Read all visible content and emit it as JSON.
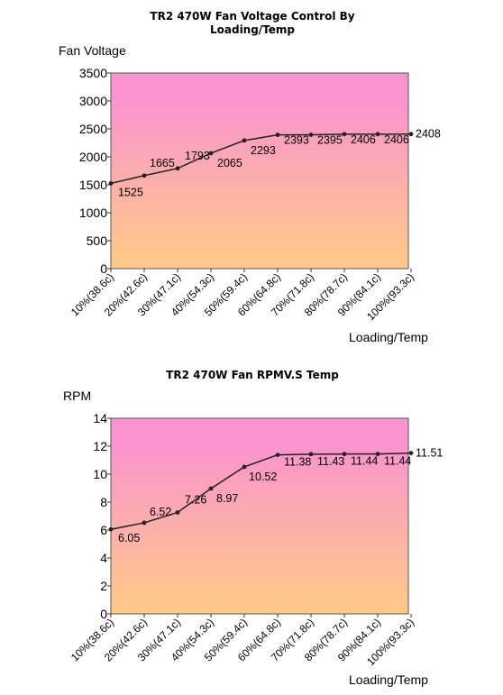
{
  "chart_data": [
    {
      "type": "line",
      "title": "TR2 470W Fan Voltage Control By Loading/Temp",
      "ylabel": "Fan Voltage",
      "xlabel": "Loading/Temp",
      "categories": [
        "10%(38.6c)",
        "20%(42.6c)",
        "30%(47.1c)",
        "40%(54.3c)",
        "50%(59.4c)",
        "60%(64.8c)",
        "70%(71.8c)",
        "80%(78.7c)",
        "90%(84.1c)",
        "100%(93.3c)"
      ],
      "values": [
        1525,
        1665,
        1793,
        2065,
        2293,
        2393,
        2395,
        2406,
        2406,
        2408
      ],
      "data_labels": [
        "1525",
        "1665",
        "1793",
        "2065",
        "2293",
        "2393",
        "2395",
        "2406",
        "2406",
        "2408"
      ],
      "ylim": [
        0,
        3500
      ],
      "yticks": [
        "0",
        "500",
        "1000",
        "1500",
        "2000",
        "2500",
        "3000",
        "3500"
      ],
      "grid": false,
      "background_gradient": [
        "#fb93d0",
        "#fec88a"
      ],
      "line_color": "#222222"
    },
    {
      "type": "line",
      "title": "TR2 470W Fan RPMV.S Temp",
      "ylabel": "RPM",
      "xlabel": "Loading/Temp",
      "categories": [
        "10%(38.6c)",
        "20%(42.6c)",
        "30%(47.1c)",
        "40%(54.3c)",
        "50%(59.4c)",
        "60%(64.8c)",
        "70%(71.8c)",
        "80%(78.7c)",
        "90%(84.1c)",
        "100%(93.3c)"
      ],
      "values": [
        6.05,
        6.52,
        7.26,
        8.97,
        10.52,
        11.38,
        11.43,
        11.44,
        11.44,
        11.51
      ],
      "data_labels": [
        "6.05",
        "6.52",
        "7.26",
        "8.97",
        "10.52",
        "11.38",
        "11.43",
        "11.44",
        "11.44",
        "11.51"
      ],
      "ylim": [
        0,
        14
      ],
      "yticks": [
        "0",
        "2",
        "4",
        "6",
        "8",
        "10",
        "12",
        "14"
      ],
      "grid": false,
      "background_gradient": [
        "#fb93d0",
        "#fec88a"
      ],
      "line_color": "#222222"
    }
  ]
}
